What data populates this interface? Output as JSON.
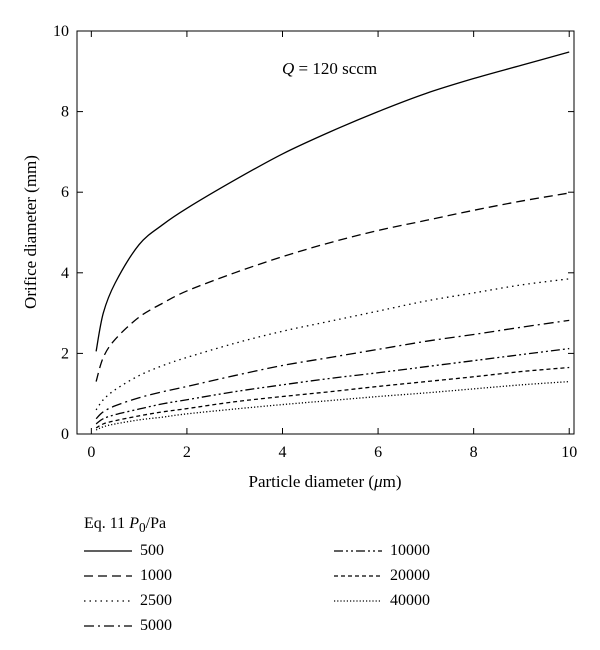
{
  "chart_data": {
    "type": "line",
    "annotation": {
      "prefix": "Q",
      "value": " = 120 sccm"
    },
    "xlabel": {
      "text": "Particle diameter (",
      "unit_symbol": "μ",
      "unit_rest": "m)"
    },
    "ylabel": "Orifice diameter (mm)",
    "xlim": [
      -0.3,
      10.1
    ],
    "ylim": [
      0,
      10
    ],
    "xticks": [
      "0",
      "2",
      "4",
      "6",
      "8",
      "10"
    ],
    "yticks": [
      "0",
      "2",
      "4",
      "6",
      "8",
      "10"
    ],
    "grid": false,
    "legend": {
      "placement": "below",
      "title_prefix": "Eq. 11  ",
      "title_var": "P",
      "title_sub": "0",
      "title_suffix": "/Pa"
    },
    "x": [
      0.1,
      0.25,
      0.5,
      1,
      1.5,
      2,
      3,
      4,
      5,
      6,
      7,
      8,
      9,
      10
    ],
    "series": [
      {
        "name": "500",
        "dash": "solid",
        "values": [
          2.05,
          3.0,
          3.75,
          4.7,
          5.2,
          5.6,
          6.3,
          6.95,
          7.5,
          8.0,
          8.45,
          8.82,
          9.15,
          9.48
        ]
      },
      {
        "name": "1000",
        "dash": "dash",
        "values": [
          1.3,
          1.9,
          2.35,
          2.9,
          3.25,
          3.55,
          4.0,
          4.4,
          4.75,
          5.05,
          5.3,
          5.55,
          5.78,
          5.98
        ]
      },
      {
        "name": "2500",
        "dash": "dot",
        "values": [
          0.6,
          0.85,
          1.1,
          1.45,
          1.7,
          1.9,
          2.25,
          2.55,
          2.8,
          3.05,
          3.3,
          3.5,
          3.7,
          3.85
        ]
      },
      {
        "name": "5000",
        "dash": "dashdot",
        "values": [
          0.38,
          0.55,
          0.7,
          0.9,
          1.05,
          1.18,
          1.45,
          1.7,
          1.9,
          2.1,
          2.3,
          2.47,
          2.65,
          2.82
        ]
      },
      {
        "name": "10000",
        "dash": "dashdotdot",
        "values": [
          0.25,
          0.38,
          0.48,
          0.62,
          0.75,
          0.85,
          1.05,
          1.22,
          1.38,
          1.52,
          1.67,
          1.82,
          1.97,
          2.12
        ]
      },
      {
        "name": "20000",
        "dash": "shortdash",
        "values": [
          0.15,
          0.25,
          0.33,
          0.45,
          0.55,
          0.63,
          0.8,
          0.93,
          1.05,
          1.18,
          1.3,
          1.42,
          1.55,
          1.65
        ]
      },
      {
        "name": "40000",
        "dash": "fine-dot",
        "values": [
          0.1,
          0.18,
          0.25,
          0.35,
          0.42,
          0.5,
          0.62,
          0.73,
          0.83,
          0.93,
          1.02,
          1.12,
          1.22,
          1.3
        ]
      }
    ]
  }
}
